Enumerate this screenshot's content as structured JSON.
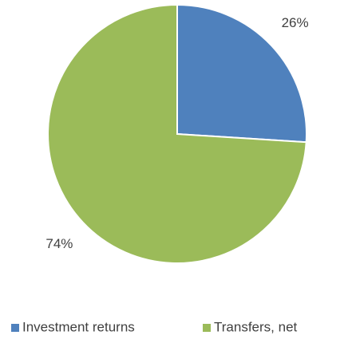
{
  "chart_data": {
    "type": "pie",
    "categories": [
      "Investment returns",
      "Transfers, net"
    ],
    "values": [
      26,
      74
    ],
    "value_labels": [
      "26%",
      "74%"
    ],
    "colors": [
      "#4f81bd",
      "#9bbb59"
    ],
    "legend": "bottom"
  }
}
